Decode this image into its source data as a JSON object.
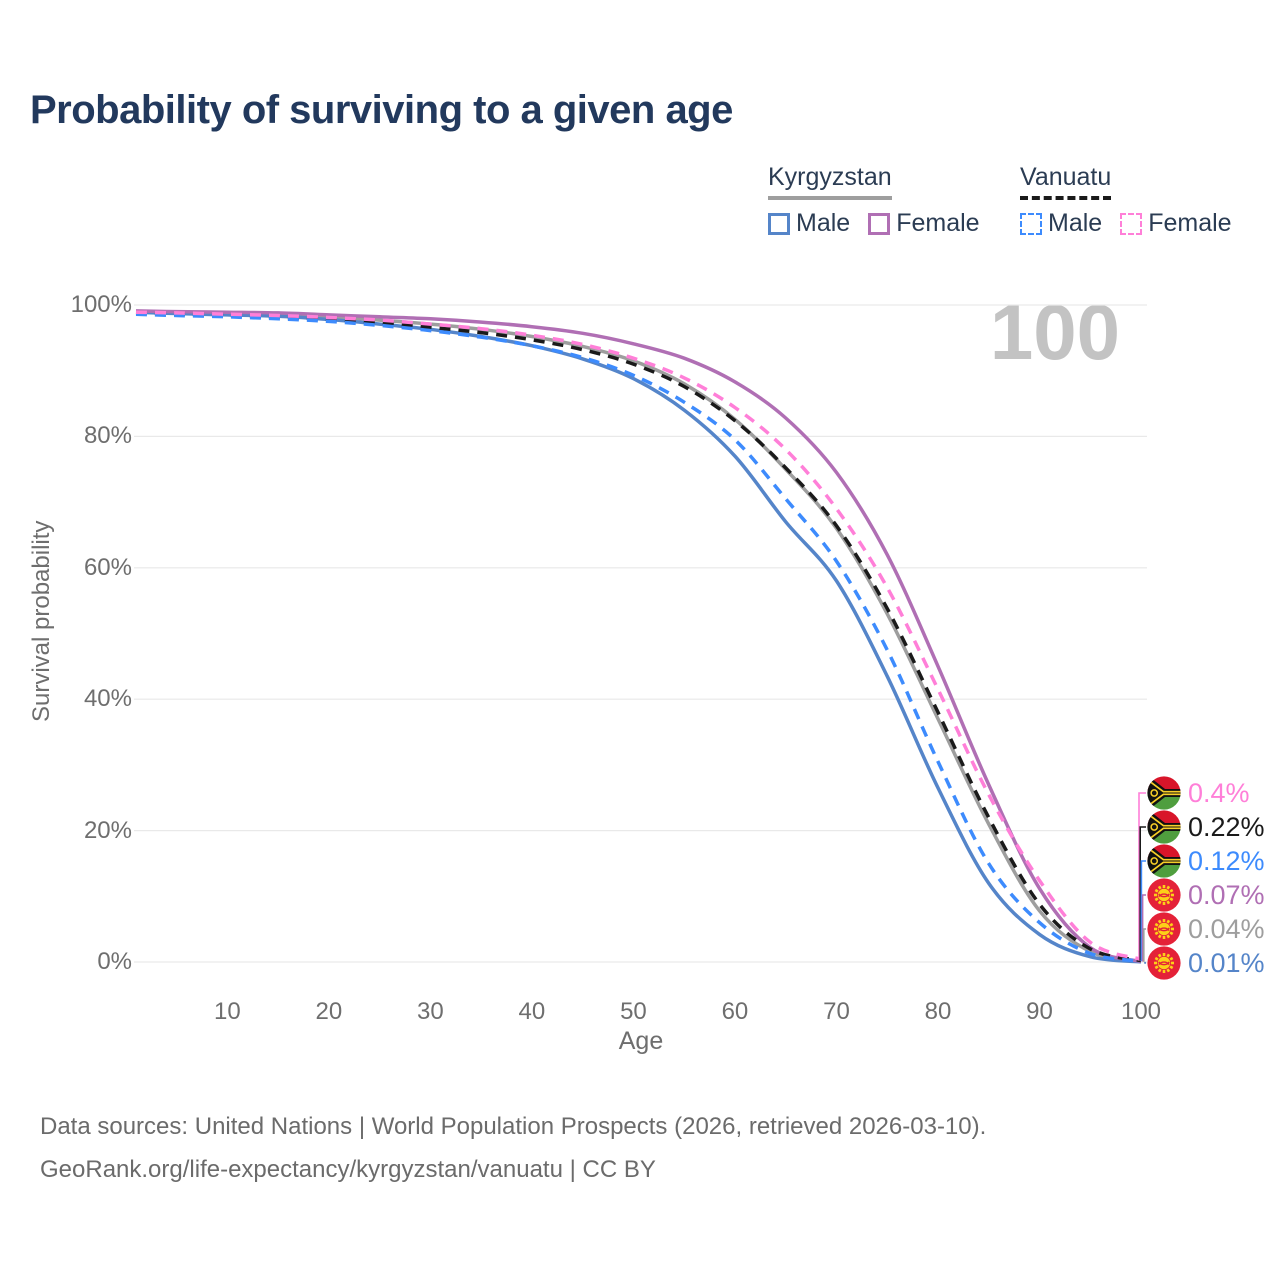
{
  "title": "Probability of surviving to a given age",
  "watermark_age": "100",
  "legend": {
    "groups": [
      {
        "country": "Kyrgyzstan",
        "line_style": "solid",
        "line_color": "#9e9e9e",
        "items": [
          {
            "label": "Male",
            "color": "#5585c9",
            "dashed": false
          },
          {
            "label": "Female",
            "color": "#b06fb4",
            "dashed": false
          }
        ]
      },
      {
        "country": "Vanuatu",
        "line_style": "dashed",
        "line_color": "#1a1a1a",
        "items": [
          {
            "label": "Male",
            "color": "#3d8bfd",
            "dashed": true
          },
          {
            "label": "Female",
            "color": "#ff7fd8",
            "dashed": true
          }
        ]
      }
    ]
  },
  "chart_data": {
    "type": "line",
    "title": "Probability of surviving to a given age",
    "xlabel": "Age",
    "ylabel": "Survival probability",
    "xlim": [
      1,
      100
    ],
    "ylim": [
      0,
      100
    ],
    "grid": "horizontal",
    "legend_position": "top-right",
    "x_ticks": [
      10,
      20,
      30,
      40,
      50,
      60,
      70,
      80,
      90,
      100
    ],
    "y_ticks": [
      {
        "value": 0,
        "label": "0%"
      },
      {
        "value": 20,
        "label": "20%"
      },
      {
        "value": 40,
        "label": "40%"
      },
      {
        "value": 60,
        "label": "60%"
      },
      {
        "value": 80,
        "label": "80%"
      },
      {
        "value": 100,
        "label": "100%"
      }
    ],
    "x": [
      1,
      5,
      10,
      15,
      20,
      25,
      30,
      35,
      40,
      45,
      50,
      55,
      60,
      65,
      70,
      75,
      80,
      85,
      90,
      95,
      100
    ],
    "series": [
      {
        "name": "Kyrgyzstan Total",
        "country": "Kyrgyzstan",
        "sex": "total",
        "style": "solid",
        "color": "#9e9e9e",
        "flag": "kyrgyzstan",
        "end_label": "0.04%",
        "values": [
          99.0,
          98.9,
          98.7,
          98.5,
          98.2,
          97.7,
          97.1,
          96.3,
          95.2,
          93.7,
          91.5,
          88.0,
          82.6,
          75.0,
          66.0,
          53.0,
          37.0,
          21.0,
          7.8,
          1.6,
          0.04
        ]
      },
      {
        "name": "Kyrgyzstan Male",
        "country": "Kyrgyzstan",
        "sex": "male",
        "style": "solid",
        "color": "#5585c9",
        "flag": "kyrgyzstan",
        "end_label": "0.01%",
        "values": [
          98.9,
          98.7,
          98.5,
          98.3,
          97.8,
          97.1,
          96.3,
          95.2,
          93.8,
          91.8,
          88.8,
          84.0,
          77.0,
          67.0,
          58.0,
          43.5,
          26.5,
          12.0,
          4.2,
          0.8,
          0.01
        ]
      },
      {
        "name": "Kyrgyzstan Female",
        "country": "Kyrgyzstan",
        "sex": "female",
        "style": "solid",
        "color": "#b06fb4",
        "flag": "kyrgyzstan",
        "end_label": "0.07%",
        "values": [
          99.1,
          99.0,
          98.9,
          98.8,
          98.5,
          98.2,
          97.9,
          97.4,
          96.7,
          95.7,
          94.1,
          91.9,
          88.3,
          82.8,
          74.5,
          62.0,
          45.0,
          27.0,
          11.2,
          2.2,
          0.07
        ]
      },
      {
        "name": "Vanuatu Total",
        "country": "Vanuatu",
        "sex": "total",
        "style": "dashed",
        "color": "#1a1a1a",
        "flag": "vanuatu",
        "end_label": "0.22%",
        "values": [
          98.8,
          98.6,
          98.4,
          98.1,
          97.8,
          97.3,
          96.6,
          95.8,
          94.7,
          93.2,
          91.0,
          87.6,
          82.4,
          75.2,
          66.4,
          53.8,
          38.0,
          22.0,
          8.8,
          2.0,
          0.22
        ]
      },
      {
        "name": "Vanuatu Male",
        "country": "Vanuatu",
        "sex": "male",
        "style": "dashed",
        "color": "#3d8bfd",
        "flag": "vanuatu",
        "end_label": "0.12%",
        "values": [
          98.6,
          98.4,
          98.2,
          97.9,
          97.5,
          96.9,
          96.1,
          95.1,
          93.8,
          92.0,
          89.3,
          85.2,
          79.5,
          70.5,
          61.0,
          47.5,
          30.5,
          15.0,
          6.0,
          1.3,
          0.12
        ]
      },
      {
        "name": "Vanuatu Female",
        "country": "Vanuatu",
        "sex": "female",
        "style": "dashed",
        "color": "#ff7fd8",
        "flag": "vanuatu",
        "end_label": "0.4%",
        "values": [
          98.9,
          98.8,
          98.6,
          98.4,
          98.1,
          97.7,
          97.1,
          96.4,
          95.4,
          94.0,
          91.9,
          88.9,
          84.4,
          78.0,
          69.0,
          57.0,
          41.5,
          25.5,
          12.4,
          3.0,
          0.4
        ]
      }
    ]
  },
  "footer": {
    "line1": "Data sources: United Nations | World Population Prospects (2026, retrieved 2026-03-10).",
    "line2": "GeoRank.org/life-expectancy/kyrgyzstan/vanuatu | CC BY"
  }
}
